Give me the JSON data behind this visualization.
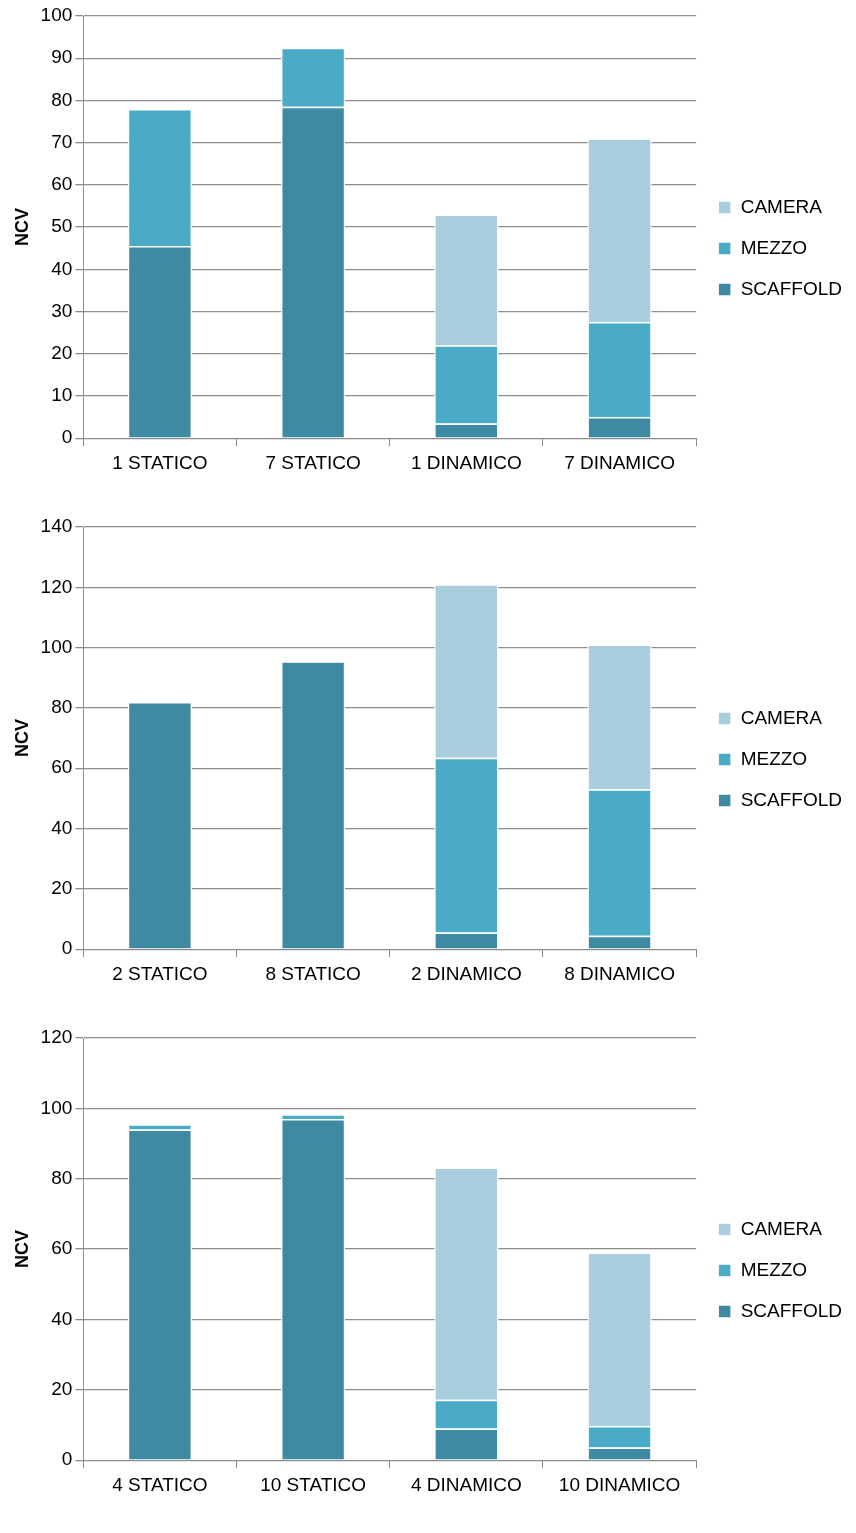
{
  "chart_data": [
    {
      "type": "bar",
      "stacked": true,
      "ylabel": "NCV",
      "ylim": [
        0,
        100
      ],
      "yticks": [
        0,
        10,
        20,
        30,
        40,
        50,
        60,
        70,
        80,
        90,
        100
      ],
      "grid": "y",
      "legend": "right",
      "categories": [
        "1 STATICO",
        "7 STATICO",
        "1 DINAMICO",
        "7 DINAMICO"
      ],
      "series": [
        {
          "name": "SCAFFOLD",
          "color": "#3d8aa2",
          "values": [
            45.5,
            78.5,
            3.5,
            5
          ]
        },
        {
          "name": "MEZZO",
          "color": "#4aabc6",
          "values": [
            32.5,
            14,
            18.5,
            22.5
          ]
        },
        {
          "name": "CAMERA",
          "color": "#a8cedd",
          "values": [
            null,
            null,
            31,
            43.5
          ]
        }
      ]
    },
    {
      "type": "bar",
      "stacked": true,
      "ylabel": "NCV",
      "ylim": [
        0,
        140
      ],
      "yticks": [
        0,
        20,
        40,
        60,
        80,
        100,
        120,
        140
      ],
      "grid": "y",
      "legend": "right",
      "categories": [
        "2 STATICO",
        "8 STATICO",
        "2 DINAMICO",
        "8 DINAMICO"
      ],
      "series": [
        {
          "name": "SCAFFOLD",
          "color": "#3d8aa2",
          "values": [
            82,
            95.5,
            5.5,
            4.5
          ]
        },
        {
          "name": "MEZZO",
          "color": "#4aabc6",
          "values": [
            null,
            null,
            58,
            48.5
          ]
        },
        {
          "name": "CAMERA",
          "color": "#a8cedd",
          "values": [
            null,
            null,
            57.5,
            48
          ]
        }
      ]
    },
    {
      "type": "bar",
      "stacked": true,
      "ylabel": "NCV",
      "ylim": [
        0,
        120
      ],
      "yticks": [
        0,
        20,
        40,
        60,
        80,
        100,
        120
      ],
      "grid": "y",
      "legend": "right",
      "categories": [
        "4 STATICO",
        "10 STATICO",
        "4 DINAMICO",
        "10 DINAMICO"
      ],
      "series": [
        {
          "name": "SCAFFOLD",
          "color": "#3d8aa2",
          "values": [
            94,
            97,
            9,
            3.6
          ]
        },
        {
          "name": "MEZZO",
          "color": "#4aabc6",
          "values": [
            1.5,
            1.3,
            8.2,
            6.1
          ]
        },
        {
          "name": "CAMERA",
          "color": "#a8cedd",
          "values": [
            null,
            null,
            66,
            49.3
          ]
        }
      ]
    }
  ]
}
